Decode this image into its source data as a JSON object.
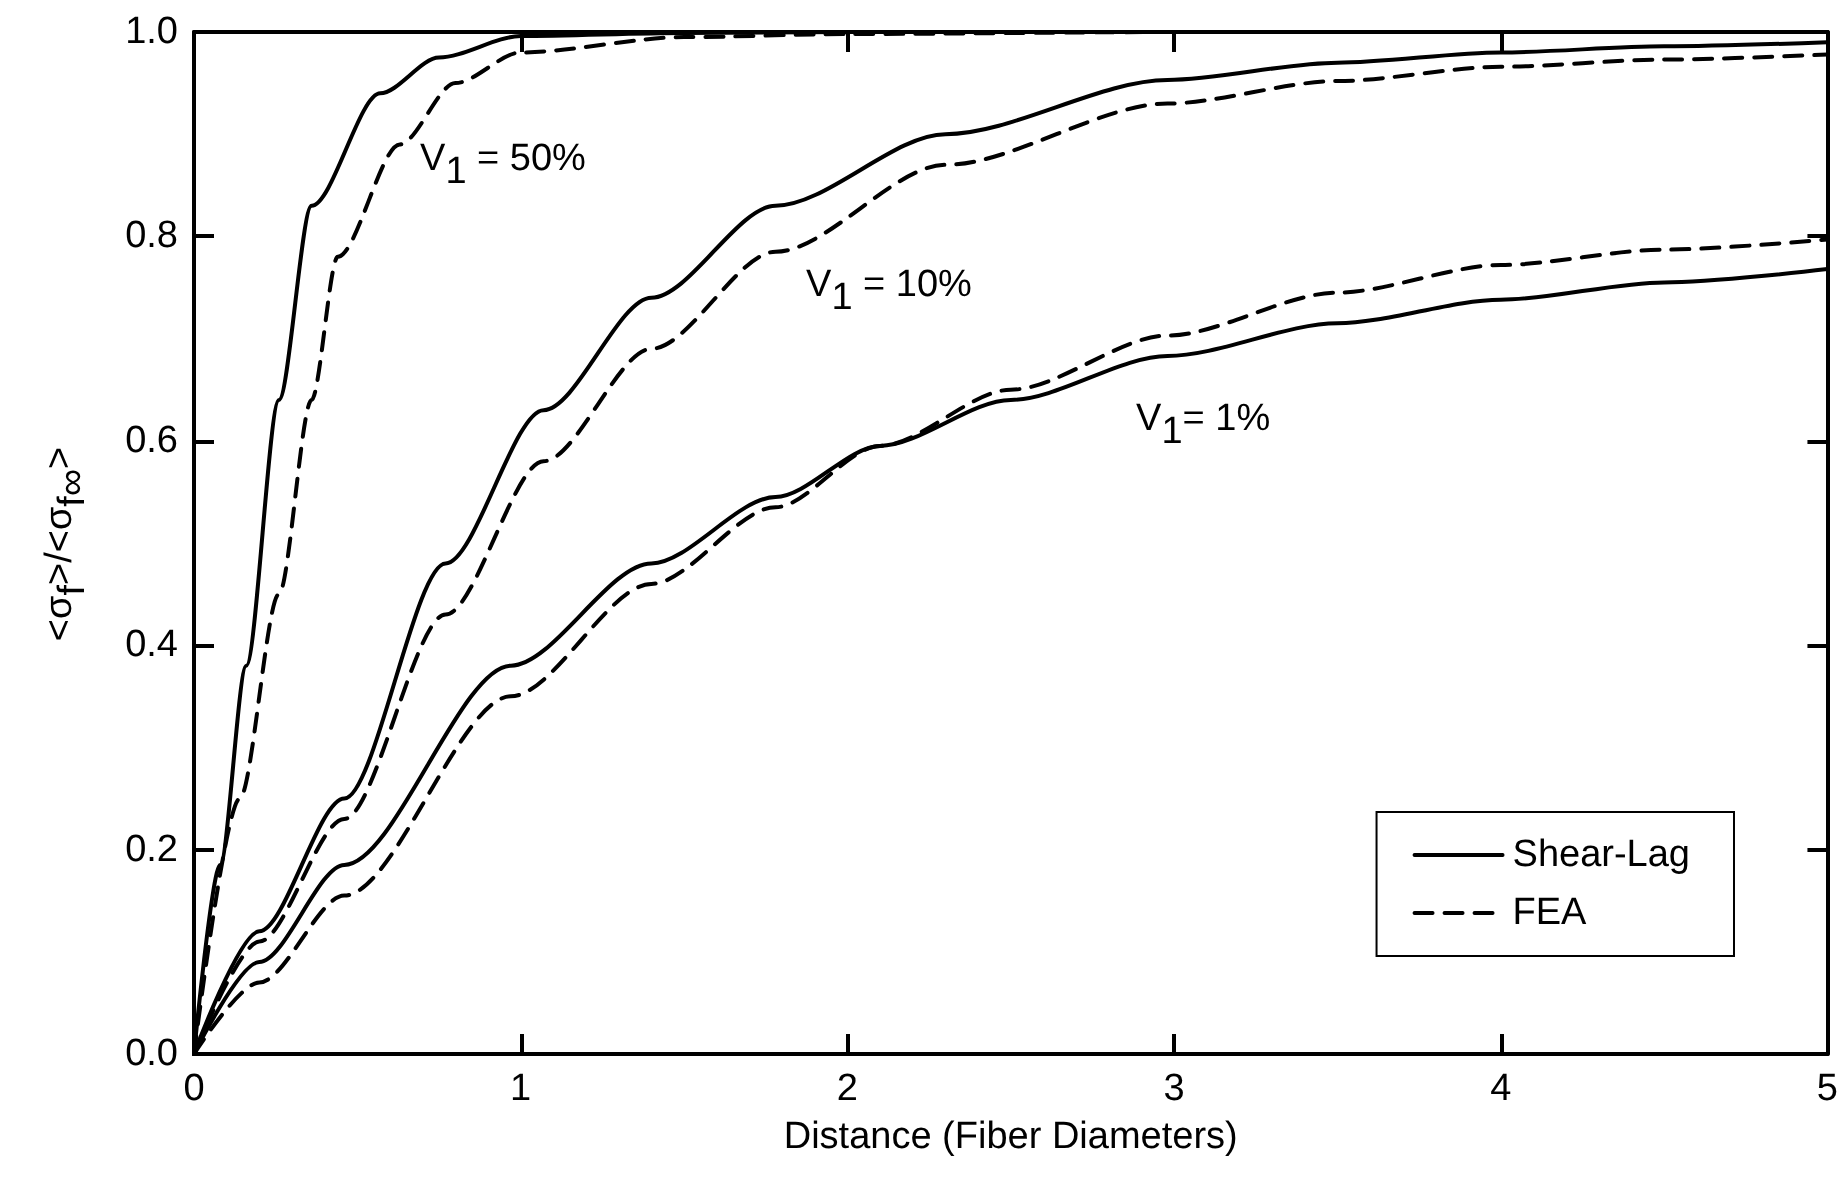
{
  "chart_data": {
    "type": "line",
    "xlabel": "Distance (Fiber Diameters)",
    "ylabel": "<σ$_{f}$>/<σ$_{f∞}$>",
    "xlim": [
      0,
      5
    ],
    "xticks": [
      0,
      1,
      2,
      3,
      4,
      5
    ],
    "ylim": [
      0,
      1
    ],
    "yticks": [
      {
        "value": 0,
        "label": "0.0"
      },
      {
        "value": 0.2,
        "label": "0.2"
      },
      {
        "value": 0.4,
        "label": "0.4"
      },
      {
        "value": 0.6,
        "label": "0.6"
      },
      {
        "value": 0.8,
        "label": "0.8"
      },
      {
        "value": 1,
        "label": "1.0"
      }
    ],
    "grid": false,
    "legend": "bottom right",
    "marker": "none",
    "annotations": [
      "V$_{1}$ = 50%",
      "V$_{1}$ = 10%",
      "V$_{1}$= 1%"
    ],
    "series": [
      {
        "name": "Shear-Lag",
        "color": "#000000",
        "line_style": "solid",
        "x": [
          0,
          0.08,
          0.16,
          0.26,
          0.36,
          0.57,
          0.75,
          1.0,
          1.5,
          2,
          3,
          4,
          5
        ],
        "values": [
          0,
          0.185,
          0.38,
          0.64,
          0.83,
          0.94,
          0.975,
          0.996,
          0.999,
          1,
          1,
          1,
          1
        ]
      },
      {
        "name": "FEA",
        "color": "#000000",
        "line_style": "dashed",
        "x": [
          0,
          0.14,
          0.26,
          0.36,
          0.44,
          0.63,
          0.8,
          1.0,
          1.5,
          2,
          3,
          4,
          5
        ],
        "values": [
          0,
          0.25,
          0.45,
          0.64,
          0.78,
          0.89,
          0.95,
          0.98,
          0.995,
          0.998,
          1,
          1,
          1
        ]
      },
      {
        "color": "#000000",
        "line_style": "solid",
        "x": [
          0,
          0.2,
          0.46,
          0.77,
          1.07,
          1.4,
          1.78,
          2.3,
          2.98,
          3.5,
          4,
          4.5,
          5
        ],
        "values": [
          0,
          0.12,
          0.25,
          0.48,
          0.63,
          0.74,
          0.83,
          0.9,
          0.953,
          0.97,
          0.98,
          0.986,
          0.99
        ]
      },
      {
        "color": "#000000",
        "line_style": "dashed",
        "x": [
          0,
          0.2,
          0.46,
          0.77,
          1.07,
          1.4,
          1.78,
          2.3,
          2.98,
          3.5,
          4,
          4.5,
          5
        ],
        "values": [
          0,
          0.11,
          0.23,
          0.43,
          0.58,
          0.69,
          0.785,
          0.87,
          0.93,
          0.952,
          0.966,
          0.973,
          0.978
        ]
      },
      {
        "color": "#000000",
        "line_style": "solid",
        "x": [
          0,
          0.2,
          0.46,
          0.97,
          1.4,
          1.78,
          2.1,
          2.5,
          2.98,
          3.5,
          4,
          4.5,
          5
        ],
        "values": [
          0,
          0.09,
          0.185,
          0.38,
          0.48,
          0.545,
          0.595,
          0.64,
          0.683,
          0.715,
          0.738,
          0.755,
          0.768
        ]
      },
      {
        "color": "#000000",
        "line_style": "dashed",
        "x": [
          0,
          0.2,
          0.46,
          0.97,
          1.4,
          1.78,
          2.1,
          2.5,
          2.98,
          3.5,
          4,
          4.5,
          5
        ],
        "values": [
          0,
          0.07,
          0.155,
          0.35,
          0.46,
          0.535,
          0.595,
          0.65,
          0.703,
          0.745,
          0.772,
          0.787,
          0.797
        ]
      }
    ]
  }
}
